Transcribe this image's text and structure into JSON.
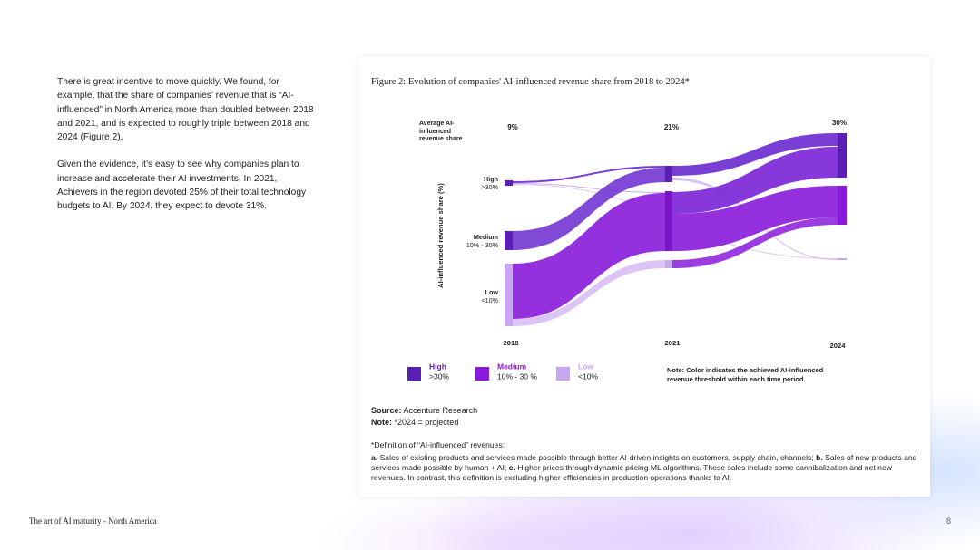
{
  "body_text": [
    "There is great incentive to move quickly. We found, for example, that the share of companies’ revenue that is “AI-influenced” in North America more than doubled between 2018 and 2021, and is expected to roughly triple between 2018 and 2024 (Figure 2).",
    "Given the evidence, it’s easy to see why companies plan to increase and accelerate their AI investments. In 2021, Achievers in the region devoted 25% of their total technology budgets to AI. By 2024, they expect to devote 31%."
  ],
  "figure": {
    "title": "Figure 2: Evolution of companies' AI-influenced revenue share from 2018 to 2024*",
    "average_label": "Average AI-influenced revenue share",
    "averages": [
      "9%",
      "21%",
      "30%"
    ],
    "y_axis_label": "AI-influenced revenue share (%)",
    "levels": [
      {
        "name": "High",
        "range": ">30%"
      },
      {
        "name": "Medium",
        "range": "10% - 30%"
      },
      {
        "name": "Low",
        "range": "<10%"
      }
    ],
    "years": [
      "2018",
      "2021",
      "2024"
    ],
    "legend": [
      {
        "name": "High",
        "range": ">30%"
      },
      {
        "name": "Medium",
        "range": "10% - 30 %"
      },
      {
        "name": "Low",
        "range": "<10%"
      }
    ],
    "note": "Note: Color indicates the achieved AI-influenced revenue threshold within each time period."
  },
  "source": {
    "label": "Source:",
    "text": "Accenture Research"
  },
  "note": {
    "label": "Note:",
    "text": "*2024 = projected"
  },
  "definition": {
    "heading": "*Definition of “AI-influenced” revenues:",
    "parts": [
      {
        "label": "a.",
        "text": "Sales of existing products and services made possible through better AI-driven insights on customers, supply chain, channels;"
      },
      {
        "label": "b.",
        "text": "Sales of new products and services made possible by human + AI;"
      },
      {
        "label": "c.",
        "text": "Higher prices through dynamic pricing ML algorithms. These sales include some cannibalization and net new revenues. In contrast, this definition is excluding higher efficiencies in production operations thanks to AI."
      }
    ]
  },
  "footer": {
    "title": "The art of AI maturity - North America",
    "page": "8"
  }
}
